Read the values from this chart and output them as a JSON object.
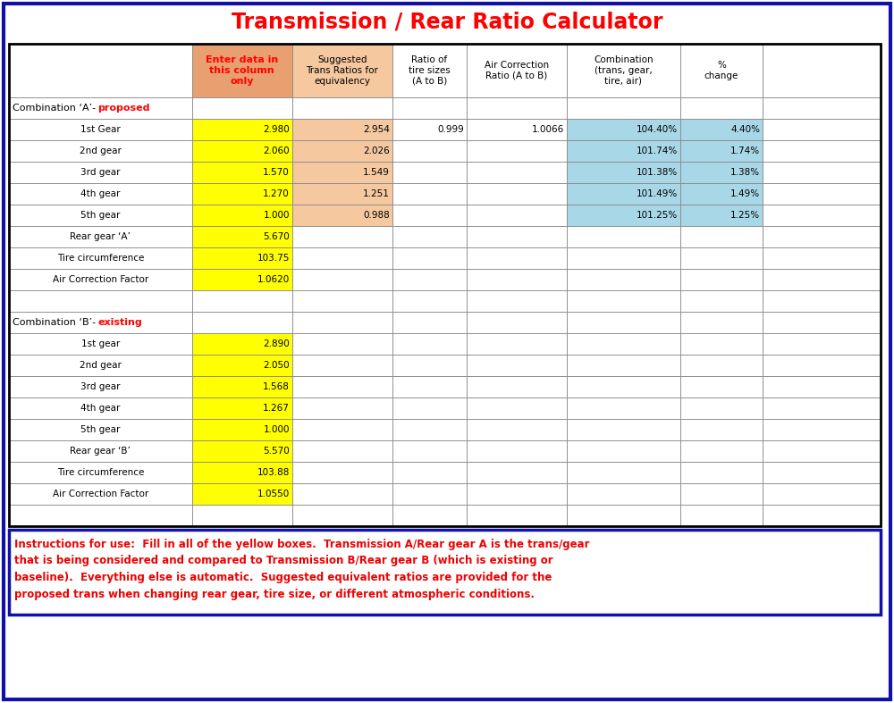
{
  "title": "Transmission / Rear Ratio Calculator",
  "title_color": "#FF0000",
  "bg_color": "#FFFFFF",
  "border_color": "#1111AA",
  "combo_a_label": "Combination ‘A’-",
  "combo_a_suffix": "proposed",
  "combo_b_label": "Combination ‘B’-",
  "combo_b_suffix": "existing",
  "section_a_rows": [
    [
      "1st Gear",
      "2.980",
      "2.954",
      "0.999",
      "1.0066",
      "104.40%",
      "4.40%"
    ],
    [
      "2nd gear",
      "2.060",
      "2.026",
      "",
      "",
      "101.74%",
      "1.74%"
    ],
    [
      "3rd gear",
      "1.570",
      "1.549",
      "",
      "",
      "101.38%",
      "1.38%"
    ],
    [
      "4th gear",
      "1.270",
      "1.251",
      "",
      "",
      "101.49%",
      "1.49%"
    ],
    [
      "5th gear",
      "1.000",
      "0.988",
      "",
      "",
      "101.25%",
      "1.25%"
    ],
    [
      "Rear gear ‘A’",
      "5.670",
      "",
      "",
      "",
      "",
      ""
    ],
    [
      "Tire circumference",
      "103.75",
      "",
      "",
      "",
      "",
      ""
    ],
    [
      "Air Correction Factor",
      "1.0620",
      "",
      "",
      "",
      "",
      ""
    ]
  ],
  "section_b_rows": [
    [
      "1st gear",
      "2.890",
      "",
      "",
      "",
      "",
      ""
    ],
    [
      "2nd gear",
      "2.050",
      "",
      "",
      "",
      "",
      ""
    ],
    [
      "3rd gear",
      "1.568",
      "",
      "",
      "",
      "",
      ""
    ],
    [
      "4th gear",
      "1.267",
      "",
      "",
      "",
      "",
      ""
    ],
    [
      "5th gear",
      "1.000",
      "",
      "",
      "",
      "",
      ""
    ],
    [
      "Rear gear ‘B’",
      "5.570",
      "",
      "",
      "",
      "",
      ""
    ],
    [
      "Tire circumference",
      "103.88",
      "",
      "",
      "",
      "",
      ""
    ],
    [
      "Air Correction Factor",
      "1.0550",
      "",
      "",
      "",
      "",
      ""
    ]
  ],
  "yellow": "#FFFF00",
  "salmon_hdr": "#E8A070",
  "peach_data": "#F5C8A0",
  "cyan_light": "#A8D8E8",
  "instructions_line1": "Instructions for use:  Fill in all of the yellow boxes.  Transmission A/Rear gear A is the trans/gear",
  "instructions_line2": "that is being considered and compared to Transmission B/Rear gear B (which is existing or",
  "instructions_line3": "baseline).  Everything else is automatic.  Suggested equivalent ratios are provided for the",
  "instructions_line4": "proposed trans when changing rear gear, tire size, or different atmospheric conditions."
}
